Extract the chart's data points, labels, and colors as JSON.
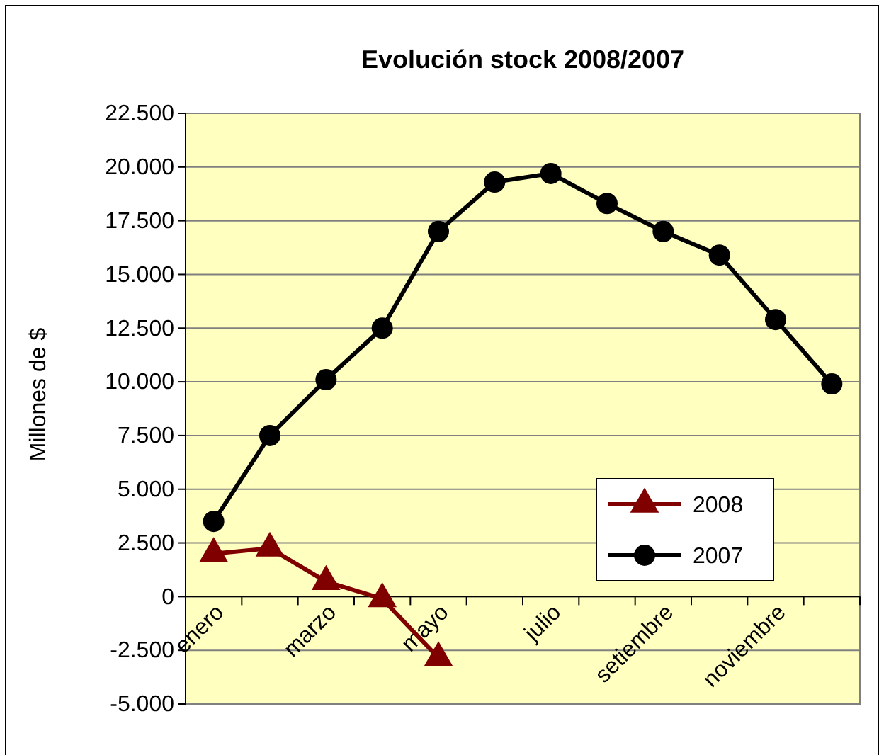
{
  "chart_data": {
    "type": "line",
    "title": "Evolución stock 2008/2007",
    "ylabel": "Millones de $",
    "categories": [
      "enero",
      null,
      "marzo",
      null,
      "mayo",
      null,
      "julio",
      null,
      "setiembre",
      null,
      "noviembre",
      null
    ],
    "series": [
      {
        "name": "2008",
        "color": "#800000",
        "marker": "triangle",
        "values": [
          2000,
          2250,
          700,
          -100,
          -2850,
          null,
          null,
          null,
          null,
          null,
          null,
          null
        ]
      },
      {
        "name": "2007",
        "color": "#000000",
        "marker": "circle",
        "values": [
          3500,
          7500,
          10100,
          12500,
          17000,
          19300,
          19700,
          18300,
          17000,
          15900,
          12900,
          9900
        ]
      }
    ],
    "ylim": [
      -5000,
      22500
    ],
    "yticks": [
      {
        "value": -5000,
        "label": "-5.000"
      },
      {
        "value": -2500,
        "label": "-2.500"
      },
      {
        "value": 0,
        "label": "0"
      },
      {
        "value": 2500,
        "label": "2.500"
      },
      {
        "value": 5000,
        "label": "5.000"
      },
      {
        "value": 7500,
        "label": "7.500"
      },
      {
        "value": 10000,
        "label": "10.000"
      },
      {
        "value": 12500,
        "label": "12.500"
      },
      {
        "value": 15000,
        "label": "15.000"
      },
      {
        "value": 17500,
        "label": "17.500"
      },
      {
        "value": 20000,
        "label": "20.000"
      },
      {
        "value": 22500,
        "label": "22.500"
      }
    ],
    "grid": "y",
    "legend": "bottom right",
    "line_style": "solid"
  }
}
